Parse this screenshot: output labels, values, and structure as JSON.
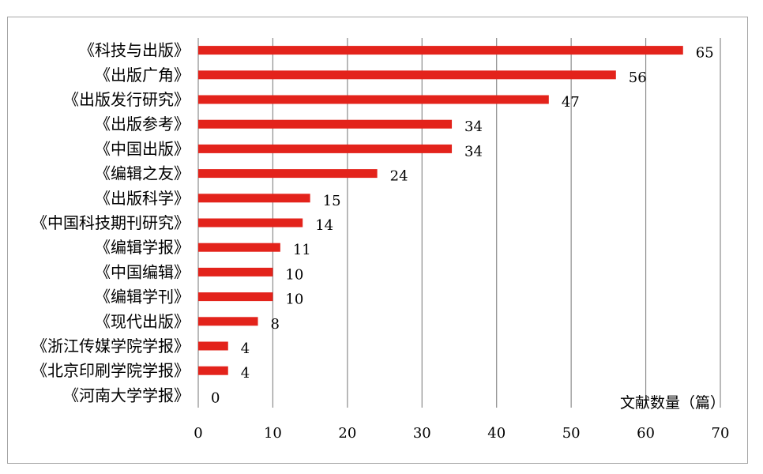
{
  "chart_data": {
    "type": "bar",
    "orientation": "horizontal",
    "categories": [
      "《科技与出版》",
      "《出版广角》",
      "《出版发行研究》",
      "《出版参考》",
      "《中国出版》",
      "《编辑之友》",
      "《出版科学》",
      "《中国科技期刊研究》",
      "《编辑学报》",
      "《中国编辑》",
      "《编辑学刊》",
      "《现代出版》",
      "《浙江传媒学院学报》",
      "《北京印刷学院学报》",
      "《河南大学学报》"
    ],
    "values": [
      65,
      56,
      47,
      34,
      34,
      24,
      15,
      14,
      11,
      10,
      10,
      8,
      4,
      4,
      0
    ],
    "title": "",
    "xlabel": "文献数量（篇）",
    "ylabel": "",
    "xlim": [
      0,
      70
    ],
    "xticks": [
      0,
      10,
      20,
      30,
      40,
      50,
      60,
      70
    ],
    "grid": "vertical",
    "legend": "none",
    "data_labels": true,
    "colors": {
      "bar": "#e3231b",
      "grid": "#8c8c8c",
      "frame": "#a6a6a6"
    }
  }
}
